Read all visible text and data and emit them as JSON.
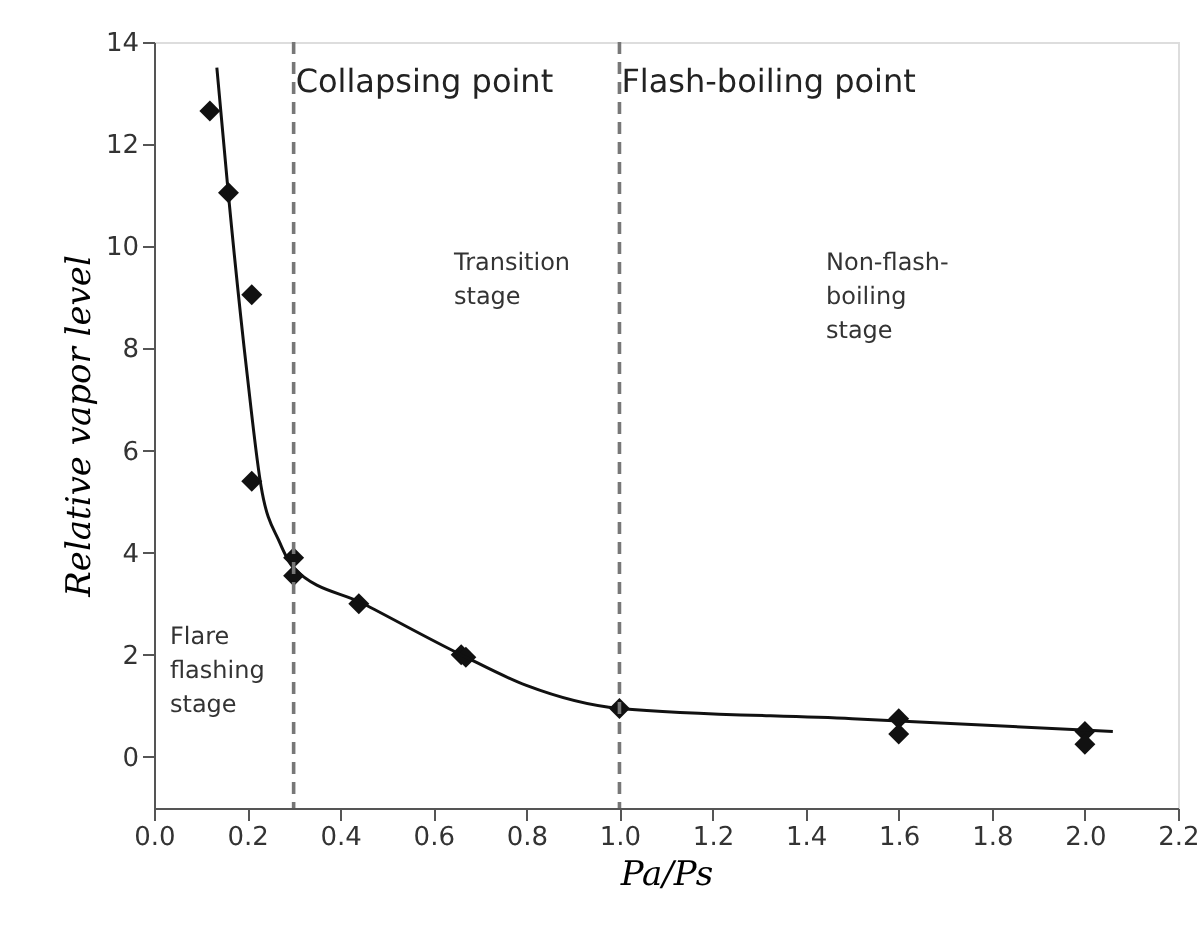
{
  "chart_data": {
    "type": "scatter",
    "xlabel": "Pa/Ps",
    "ylabel": "Relative vapor level",
    "xlim": [
      0.0,
      2.2
    ],
    "xticks": [
      {
        "value": 0,
        "label": "0.0"
      },
      {
        "value": 0.2,
        "label": "0.2"
      },
      {
        "value": 0.4,
        "label": "0.4"
      },
      {
        "value": 0.6,
        "label": "0.6"
      },
      {
        "value": 0.8,
        "label": "0.8"
      },
      {
        "value": 1,
        "label": "1.0"
      },
      {
        "value": 1.2,
        "label": "1.2"
      },
      {
        "value": 1.4,
        "label": "1.4"
      },
      {
        "value": 1.6,
        "label": "1.6"
      },
      {
        "value": 1.8,
        "label": "1.8"
      },
      {
        "value": 2,
        "label": "2.0"
      },
      {
        "value": 2.2,
        "label": "2.2"
      }
    ],
    "ylim": [
      -1,
      14
    ],
    "yticks": [
      0,
      2,
      4,
      6,
      8,
      10,
      12,
      14
    ],
    "series": [
      {
        "color": "#111111",
        "marker": "diamond",
        "x": [
          0.12,
          0.16,
          0.21,
          0.21,
          0.3,
          0.3,
          0.44,
          0.66,
          0.67,
          1.0,
          1.6,
          1.6,
          2.0,
          2.0
        ],
        "values": [
          12.65,
          11.05,
          9.05,
          5.4,
          3.9,
          3.55,
          3.0,
          2.0,
          1.95,
          0.95,
          0.75,
          0.45,
          0.5,
          0.25
        ]
      },
      {
        "type": "line",
        "color": "#111111",
        "marker": "none",
        "line_style": "solid",
        "x": [
          0.135,
          0.16,
          0.2,
          0.23,
          0.27,
          0.3,
          0.45,
          0.66,
          0.8,
          1.0,
          1.5,
          2.06
        ],
        "values": [
          13.5,
          11.0,
          7.5,
          5.3,
          4.2,
          3.7,
          3.0,
          2.0,
          1.4,
          0.95,
          0.75,
          0.5
        ]
      }
    ],
    "ref_lines": [
      {
        "axis": "x",
        "value": 0.3,
        "label": "Collapsing point",
        "color": "#777777",
        "line_style": "dashed"
      },
      {
        "axis": "x",
        "value": 1.0,
        "label": "Flash-boiling point",
        "color": "#777777",
        "line_style": "dashed"
      }
    ],
    "annotations": [
      "Flare\nflashing\nstage",
      "Transition\nstage",
      "Non-flash-\nboiling\nstage"
    ],
    "grid": false
  }
}
